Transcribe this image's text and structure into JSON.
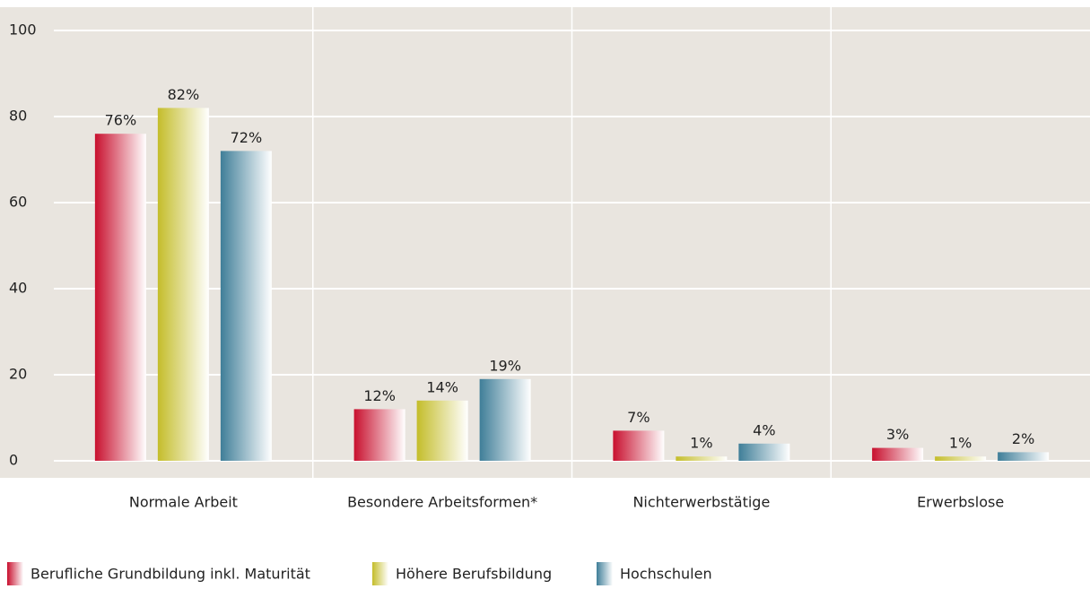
{
  "chart_data": {
    "type": "bar",
    "categories": [
      "Normale Arbeit",
      "Besondere Arbeitsformen*",
      "Nichterwerbstätige",
      "Erwerbslose"
    ],
    "series": [
      {
        "name": "Berufliche Grundbildung inkl. Maturität",
        "color": "#c8102e",
        "values": [
          76,
          12,
          7,
          3
        ],
        "value_labels": [
          "76%",
          "12%",
          "7%",
          "3%"
        ]
      },
      {
        "name": "Höhere Berufsbildung",
        "color": "#c4bd2a",
        "values": [
          82,
          14,
          1,
          1
        ],
        "value_labels": [
          "82%",
          "14%",
          "1%",
          "1%"
        ]
      },
      {
        "name": "Hochschulen",
        "color": "#3f7e98",
        "values": [
          72,
          19,
          4,
          2
        ],
        "value_labels": [
          "72%",
          "19%",
          "4%",
          "2%"
        ]
      }
    ],
    "ylim": [
      0,
      100
    ],
    "yticks": [
      0,
      20,
      40,
      60,
      80,
      100
    ],
    "grid": true,
    "legend": "bottom"
  }
}
